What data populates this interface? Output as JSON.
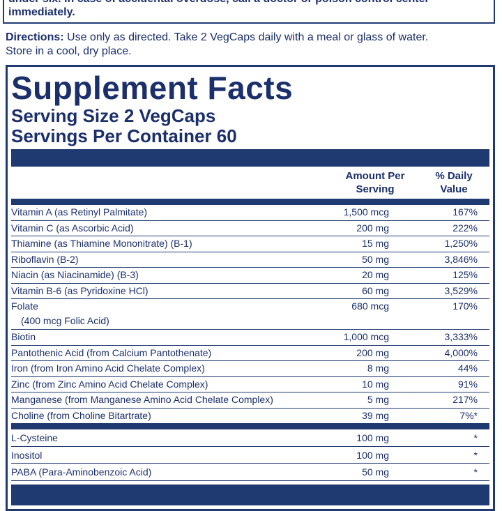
{
  "warning": {
    "lines": [
      "under six. In case of accidental overdose, call a doctor or poison control center",
      "immediately."
    ]
  },
  "directions": {
    "label": "Directions:",
    "lines": [
      "Use only as directed. Take 2 VegCaps daily with a meal or glass of water.",
      "Store in a cool, dry place."
    ]
  },
  "panel": {
    "title": "Supplement Facts",
    "serving_size": "Serving Size 2 VegCaps",
    "servings_per_container": "Servings Per Container 60",
    "header": {
      "amount": "Amount Per Serving",
      "dv": "% Daily Value"
    },
    "rows": [
      {
        "name": "Vitamin A (as Retinyl Palmitate)",
        "amount": "1,500 mcg",
        "dv": "167%"
      },
      {
        "name": "Vitamin C (as Ascorbic Acid)",
        "amount": "200 mg",
        "dv": "222%"
      },
      {
        "name": "Thiamine (as Thiamine Mononitrate) (B-1)",
        "amount": "15 mg",
        "dv": "1,250%"
      },
      {
        "name": "Riboflavin (B-2)",
        "amount": "50 mg",
        "dv": "3,846%"
      },
      {
        "name": "Niacin (as Niacinamide) (B-3)",
        "amount": "20 mg",
        "dv": "125%"
      },
      {
        "name": "Vitamin B-6 (as Pyridoxine HCl)",
        "amount": "60 mg",
        "dv": "3,529%"
      },
      {
        "name": "Folate",
        "note": "(400 mcg Folic Acid)",
        "amount": "680 mcg",
        "dv": "170%"
      },
      {
        "name": "Biotin",
        "amount": "1,000 mcg",
        "dv": "3,333%"
      },
      {
        "name": "Pantothenic Acid (from Calcium Pantothenate)",
        "amount": "200 mg",
        "dv": "4,000%"
      },
      {
        "name": "Iron (from Iron Amino Acid Chelate Complex)",
        "amount": "8 mg",
        "dv": "44%"
      },
      {
        "name": "Zinc (from Zinc Amino Acid Chelate Complex)",
        "amount": "10 mg",
        "dv": "91%"
      },
      {
        "name": "Manganese (from Manganese Amino Acid Chelate Complex)",
        "amount": "5 mg",
        "dv": "217%"
      },
      {
        "name": "Choline (from Choline Bitartrate)",
        "amount": "39 mg",
        "dv": "7%*"
      }
    ],
    "other_rows": [
      {
        "name": "L-Cysteine",
        "amount": "100 mg",
        "dv": "*"
      },
      {
        "name": "Inositol",
        "amount": "100 mg",
        "dv": "*"
      },
      {
        "name": "PABA (Para-Aminobenzoic Acid)",
        "amount": "50 mg",
        "dv": "*"
      }
    ]
  }
}
